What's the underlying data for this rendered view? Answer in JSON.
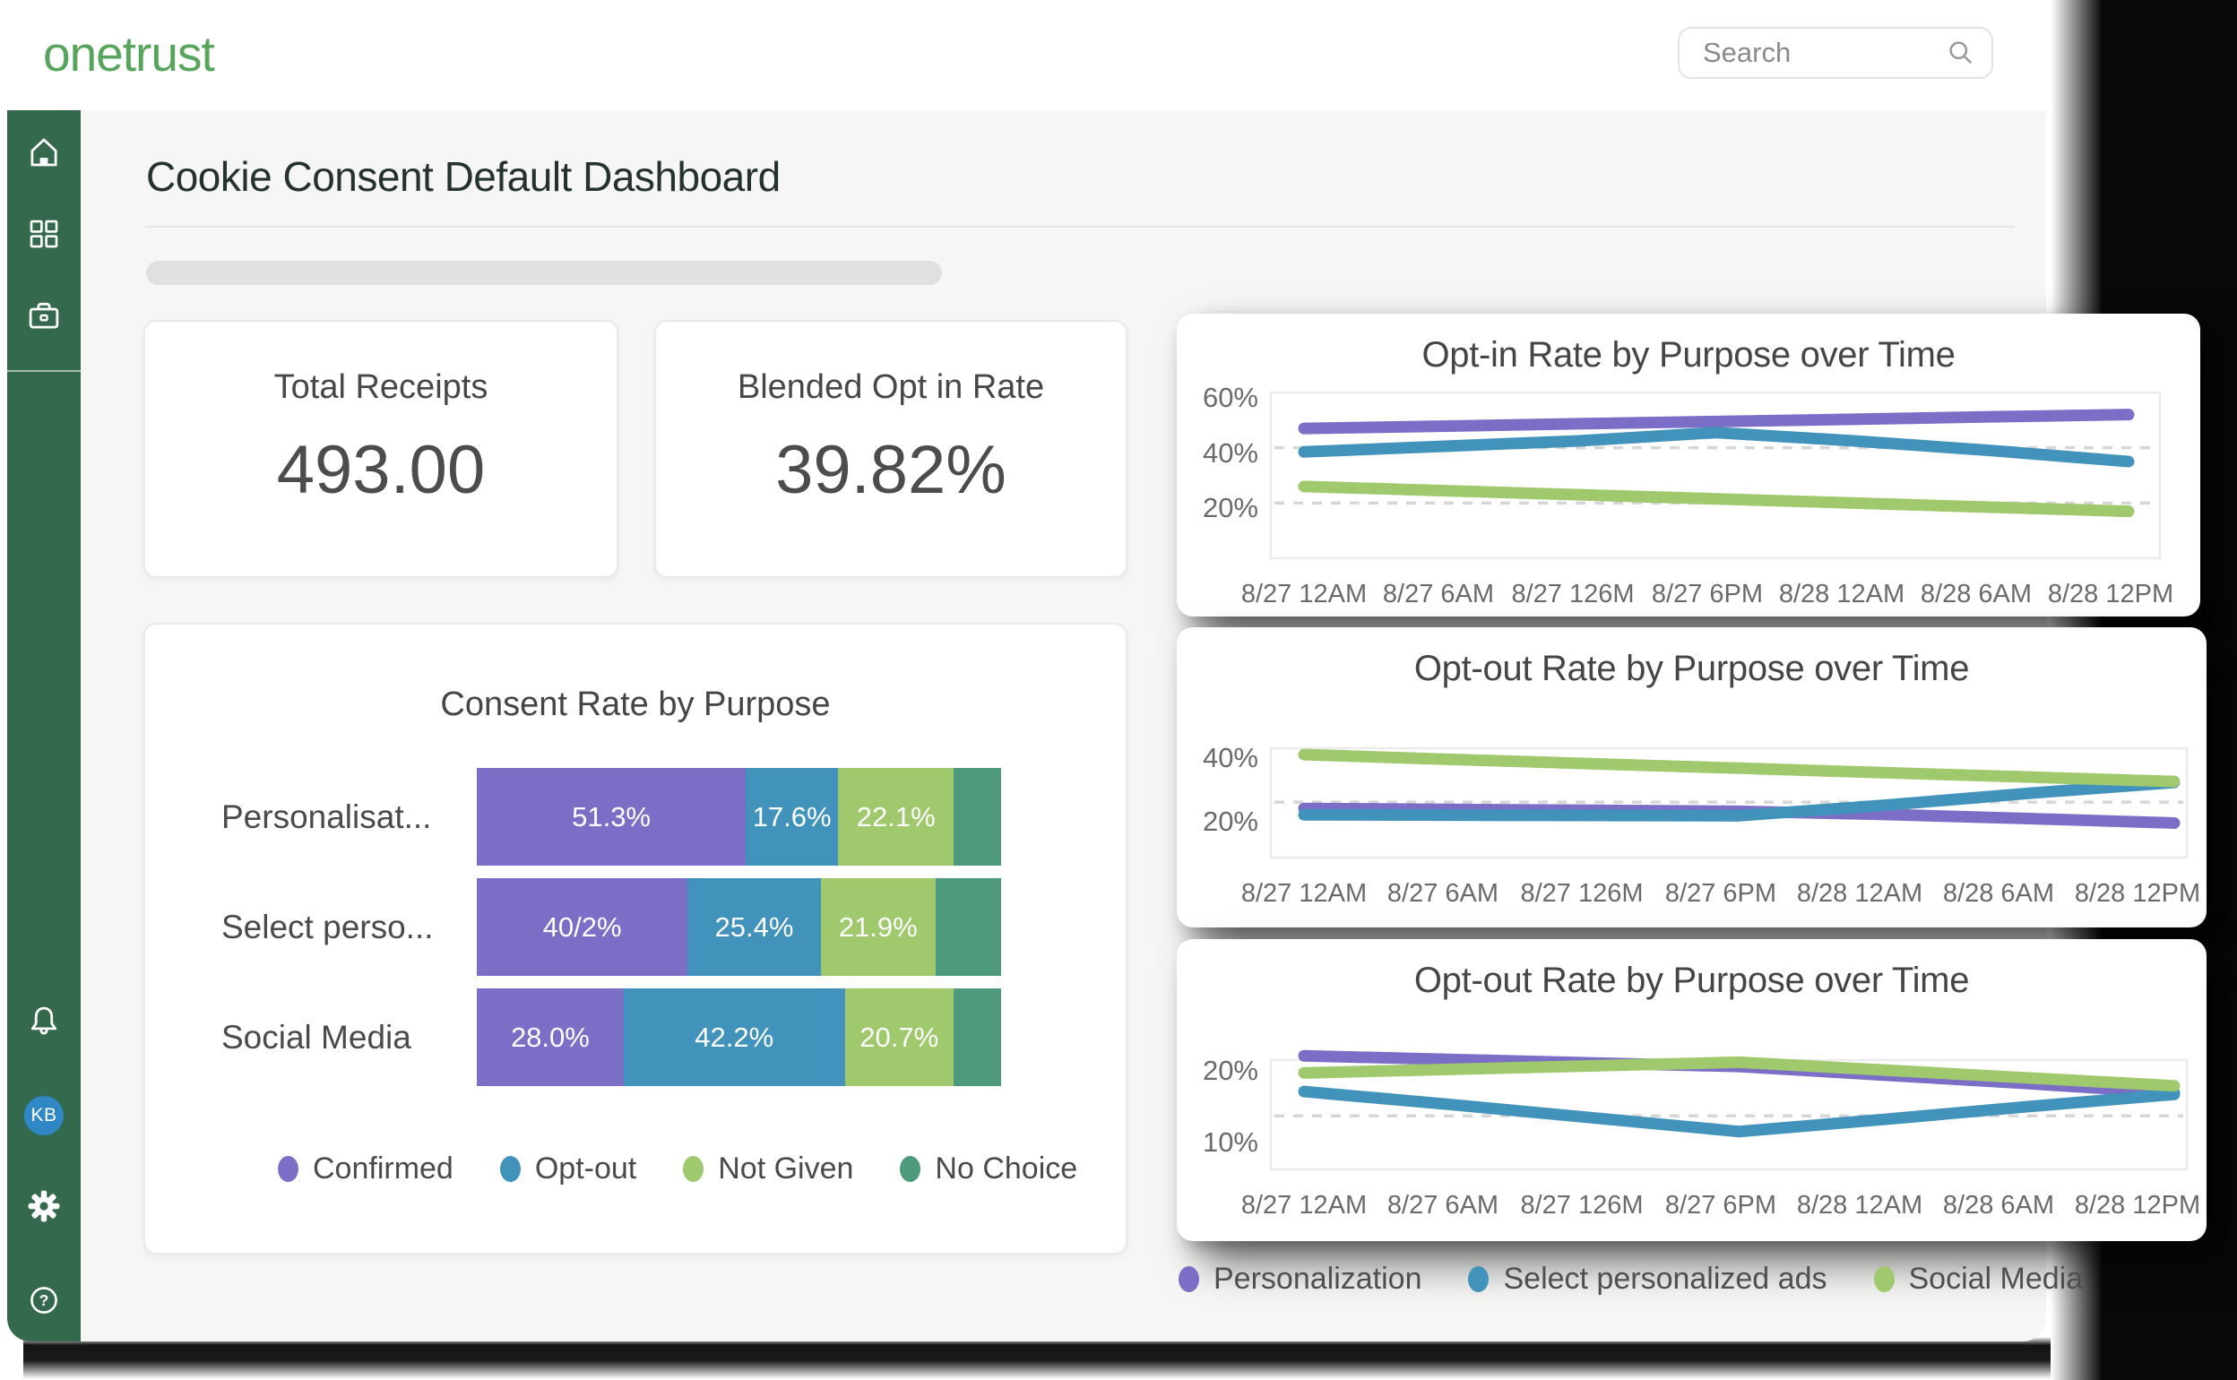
{
  "app": {
    "logo_text": "onetrust",
    "search_placeholder": "Search"
  },
  "page": {
    "title": "Cookie Consent Default Dashboard"
  },
  "sidebar": {
    "avatar_initials": "KB",
    "icons": [
      "home",
      "apps-grid",
      "briefcase",
      "bell",
      "avatar",
      "gear",
      "help"
    ]
  },
  "colors": {
    "sidebar_green": "#35694E",
    "logo_green": "#57A45C",
    "avatar_blue": "#2F87C5",
    "purple": "#7B6EC6",
    "blue": "#4293BB",
    "green": "#9FC96C",
    "teal": "#4D9A7D"
  },
  "stats": [
    {
      "label": "Total Receipts",
      "value": "493.00"
    },
    {
      "label": "Blended Opt in Rate",
      "value": "39.82%"
    }
  ],
  "chart_data": [
    {
      "type": "bar",
      "title": "Consent Rate by Purpose",
      "orientation": "horizontal-stacked",
      "unit": "%",
      "categories": [
        "Personalisat...",
        "Select perso...",
        "Social Media"
      ],
      "series": [
        {
          "name": "Confirmed",
          "color": "#7B6EC6",
          "values": [
            51.3,
            40.2,
            28.0
          ],
          "labels": [
            "51.3%",
            "40/2%",
            "28.0%"
          ]
        },
        {
          "name": "Opt-out",
          "color": "#4293BB",
          "values": [
            17.6,
            25.4,
            42.2
          ],
          "labels": [
            "17.6%",
            "25.4%",
            "42.2%"
          ]
        },
        {
          "name": "Not Given",
          "color": "#9FC96C",
          "values": [
            22.1,
            21.9,
            20.7
          ],
          "labels": [
            "22.1%",
            "21.9%",
            "20.7%"
          ]
        },
        {
          "name": "No Choice",
          "color": "#4D9A7D",
          "values": [
            9.0,
            12.5,
            9.1
          ],
          "labels": [
            "",
            "",
            ""
          ]
        }
      ]
    },
    {
      "type": "line",
      "title": "Opt-in Rate by Purpose over Time",
      "categories": [
        "8/27 12AM",
        "8/27 6AM",
        "8/27 126M",
        "8/27 6PM",
        "8/28 12AM",
        "8/28 6AM",
        "8/28 12PM"
      ],
      "ylim": [
        0,
        60
      ],
      "yticks": [
        {
          "value": 60,
          "label": "60%"
        },
        {
          "value": 40,
          "label": "40%"
        },
        {
          "value": 20,
          "label": "20%"
        }
      ],
      "gridlines": [
        40,
        20
      ],
      "legend_position": "none",
      "series": [
        {
          "name": "Personalization",
          "color": "#7B6EC6",
          "values": [
            47,
            47.8,
            48.7,
            49.5,
            50.3,
            51.2,
            52
          ]
        },
        {
          "name": "Select personalized ads",
          "color": "#4293BB",
          "values": [
            38.5,
            40.5,
            42.5,
            45.5,
            42.5,
            39,
            35
          ]
        },
        {
          "name": "Social Media",
          "color": "#9FC96C",
          "values": [
            26,
            24.5,
            23,
            21.5,
            20,
            18.5,
            17
          ]
        }
      ]
    },
    {
      "type": "line",
      "title": "Opt-out Rate by Purpose over Time",
      "categories": [
        "8/27 12AM",
        "8/27 6AM",
        "8/27 126M",
        "8/27 6PM",
        "8/28 12AM",
        "8/28 6AM",
        "8/28 12PM"
      ],
      "ylim": [
        7,
        41.5
      ],
      "yticks": [
        {
          "value": 40,
          "label": "40%"
        },
        {
          "value": 20,
          "label": "20%"
        }
      ],
      "gridlines": [
        24.5
      ],
      "legend_position": "none",
      "series": [
        {
          "name": "Personalization",
          "color": "#7B6EC6",
          "values": [
            22.5,
            22.2,
            21.9,
            21.6,
            20.6,
            19.3,
            17.9
          ]
        },
        {
          "name": "Select personalized ads",
          "color": "#4293BB",
          "values": [
            20.5,
            20.4,
            20.3,
            20.2,
            23.5,
            27.3,
            30.7
          ]
        },
        {
          "name": "Social Media",
          "color": "#9FC96C",
          "values": [
            39.5,
            38,
            36.6,
            35.2,
            33.8,
            32.4,
            31
          ]
        }
      ]
    },
    {
      "type": "line",
      "title": "Opt-out Rate by Purpose over Time",
      "categories": [
        "8/27 12AM",
        "8/27 6AM",
        "8/27 126M",
        "8/27 6PM",
        "8/28 12AM",
        "8/28 6AM",
        "8/28 12PM"
      ],
      "ylim": [
        5.5,
        20.8
      ],
      "yticks": [
        {
          "value": 20,
          "label": "20%"
        },
        {
          "value": 10,
          "label": "10%"
        }
      ],
      "gridlines": [
        13
      ],
      "legend_position": "bottom",
      "series": [
        {
          "name": "Personalization",
          "color": "#7B6EC6",
          "values": [
            21.4,
            20.9,
            20.4,
            19.9,
            18.7,
            17.5,
            16.2
          ]
        },
        {
          "name": "Select personalized ads",
          "color": "#4293BB",
          "values": [
            16.4,
            14.6,
            12.7,
            10.8,
            12.5,
            14.3,
            16.0
          ]
        },
        {
          "name": "Social Media",
          "color": "#9FC96C",
          "values": [
            19,
            19.5,
            20,
            20.5,
            19.4,
            18.3,
            17.2
          ]
        }
      ]
    }
  ],
  "bottom_legend": [
    {
      "label": "Personalization",
      "color": "#7B6EC6"
    },
    {
      "label": "Select personalized ads",
      "color": "#4293BB"
    },
    {
      "label": "Social Media",
      "color": "#9FC96C"
    }
  ]
}
